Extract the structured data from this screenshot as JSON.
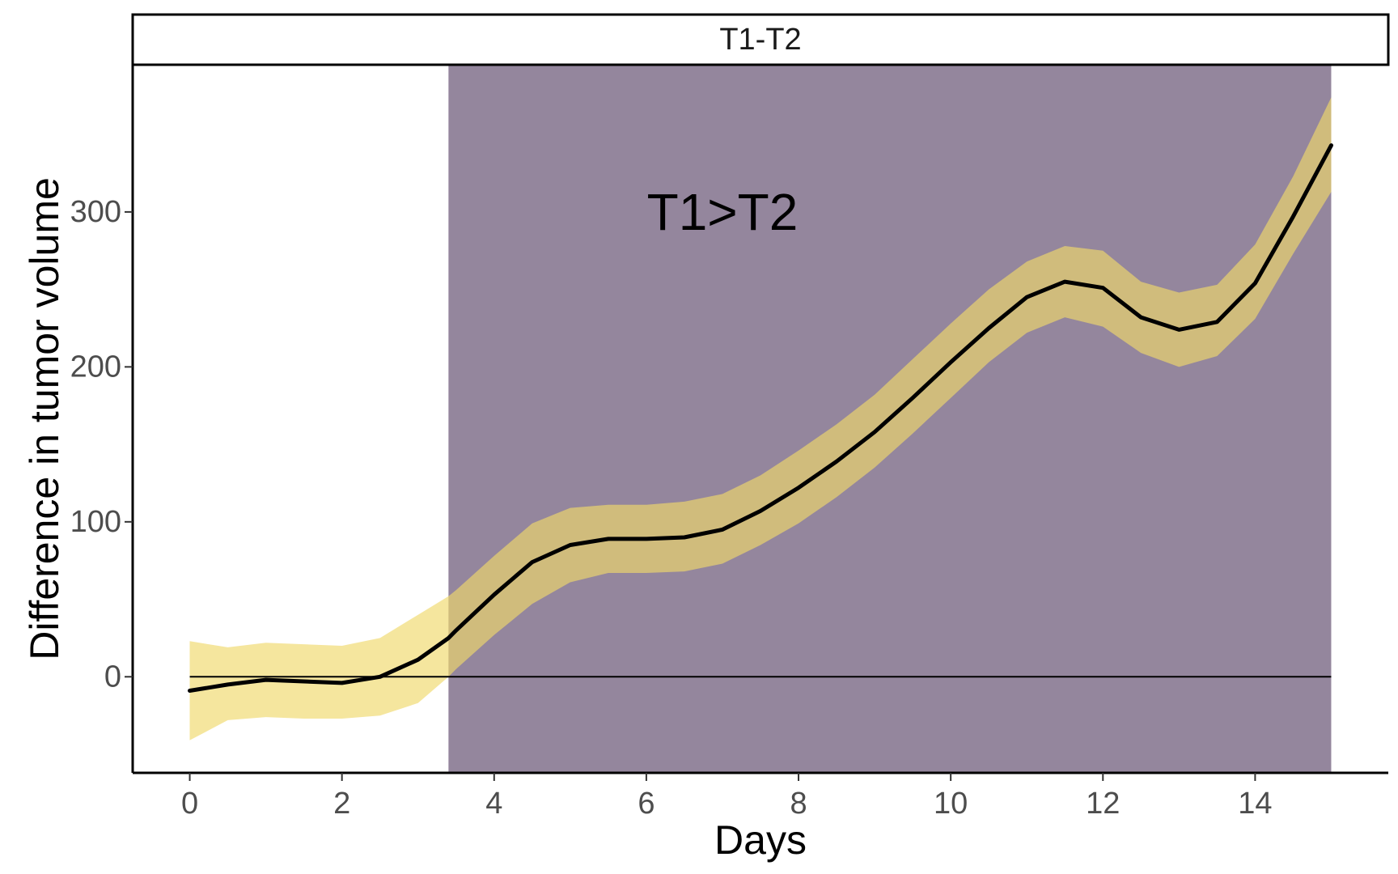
{
  "chart_data": {
    "type": "line",
    "panel_title": "T1-T2",
    "xlabel": "Days",
    "ylabel": "Difference in tumor volume",
    "xlim": [
      -0.75,
      15.75
    ],
    "ylim": [
      -62,
      395
    ],
    "x_ticks": [
      0,
      2,
      4,
      6,
      8,
      10,
      12,
      14
    ],
    "y_ticks": [
      0,
      100,
      200,
      300
    ],
    "grid": false,
    "legend": "none",
    "reference_line": 0,
    "significant_region": {
      "x_start": 3.4,
      "x_end": 15,
      "label": "T1>T2",
      "label_x": 7.0,
      "label_y": 300
    },
    "series": [
      {
        "x": [
          0,
          0.5,
          1,
          1.5,
          2,
          2.5,
          3,
          3.4,
          3.5,
          4,
          4.5,
          5,
          5.5,
          6,
          6.5,
          7,
          7.5,
          8,
          8.5,
          9,
          9.5,
          10,
          10.5,
          11,
          11.5,
          12,
          12.5,
          13,
          13.5,
          14,
          14.5,
          15
        ],
        "y": [
          -9,
          -5,
          -2,
          -3,
          -4,
          0,
          11,
          25,
          30,
          53,
          74,
          85,
          89,
          89,
          90,
          95,
          107,
          122,
          139,
          158,
          180,
          203,
          225,
          245,
          255,
          251,
          232,
          224,
          229,
          254,
          297,
          343
        ],
        "lower": [
          -41,
          -28,
          -26,
          -27,
          -27,
          -25,
          -17,
          0,
          5,
          27,
          47,
          61,
          67,
          67,
          68,
          73,
          85,
          99,
          116,
          135,
          157,
          180,
          203,
          222,
          232,
          226,
          209,
          200,
          207,
          231,
          273,
          313
        ],
        "upper": [
          23,
          19,
          22,
          21,
          20,
          25,
          40,
          52,
          56,
          78,
          99,
          109,
          111,
          111,
          113,
          118,
          130,
          146,
          163,
          182,
          205,
          228,
          250,
          268,
          278,
          275,
          255,
          248,
          253,
          279,
          323,
          374
        ]
      }
    ],
    "colors": {
      "ribbon": "#f0d86a",
      "ribbon_opacity": 0.65,
      "region": "#7d6b88",
      "region_opacity": 0.82,
      "line": "#000000"
    }
  }
}
